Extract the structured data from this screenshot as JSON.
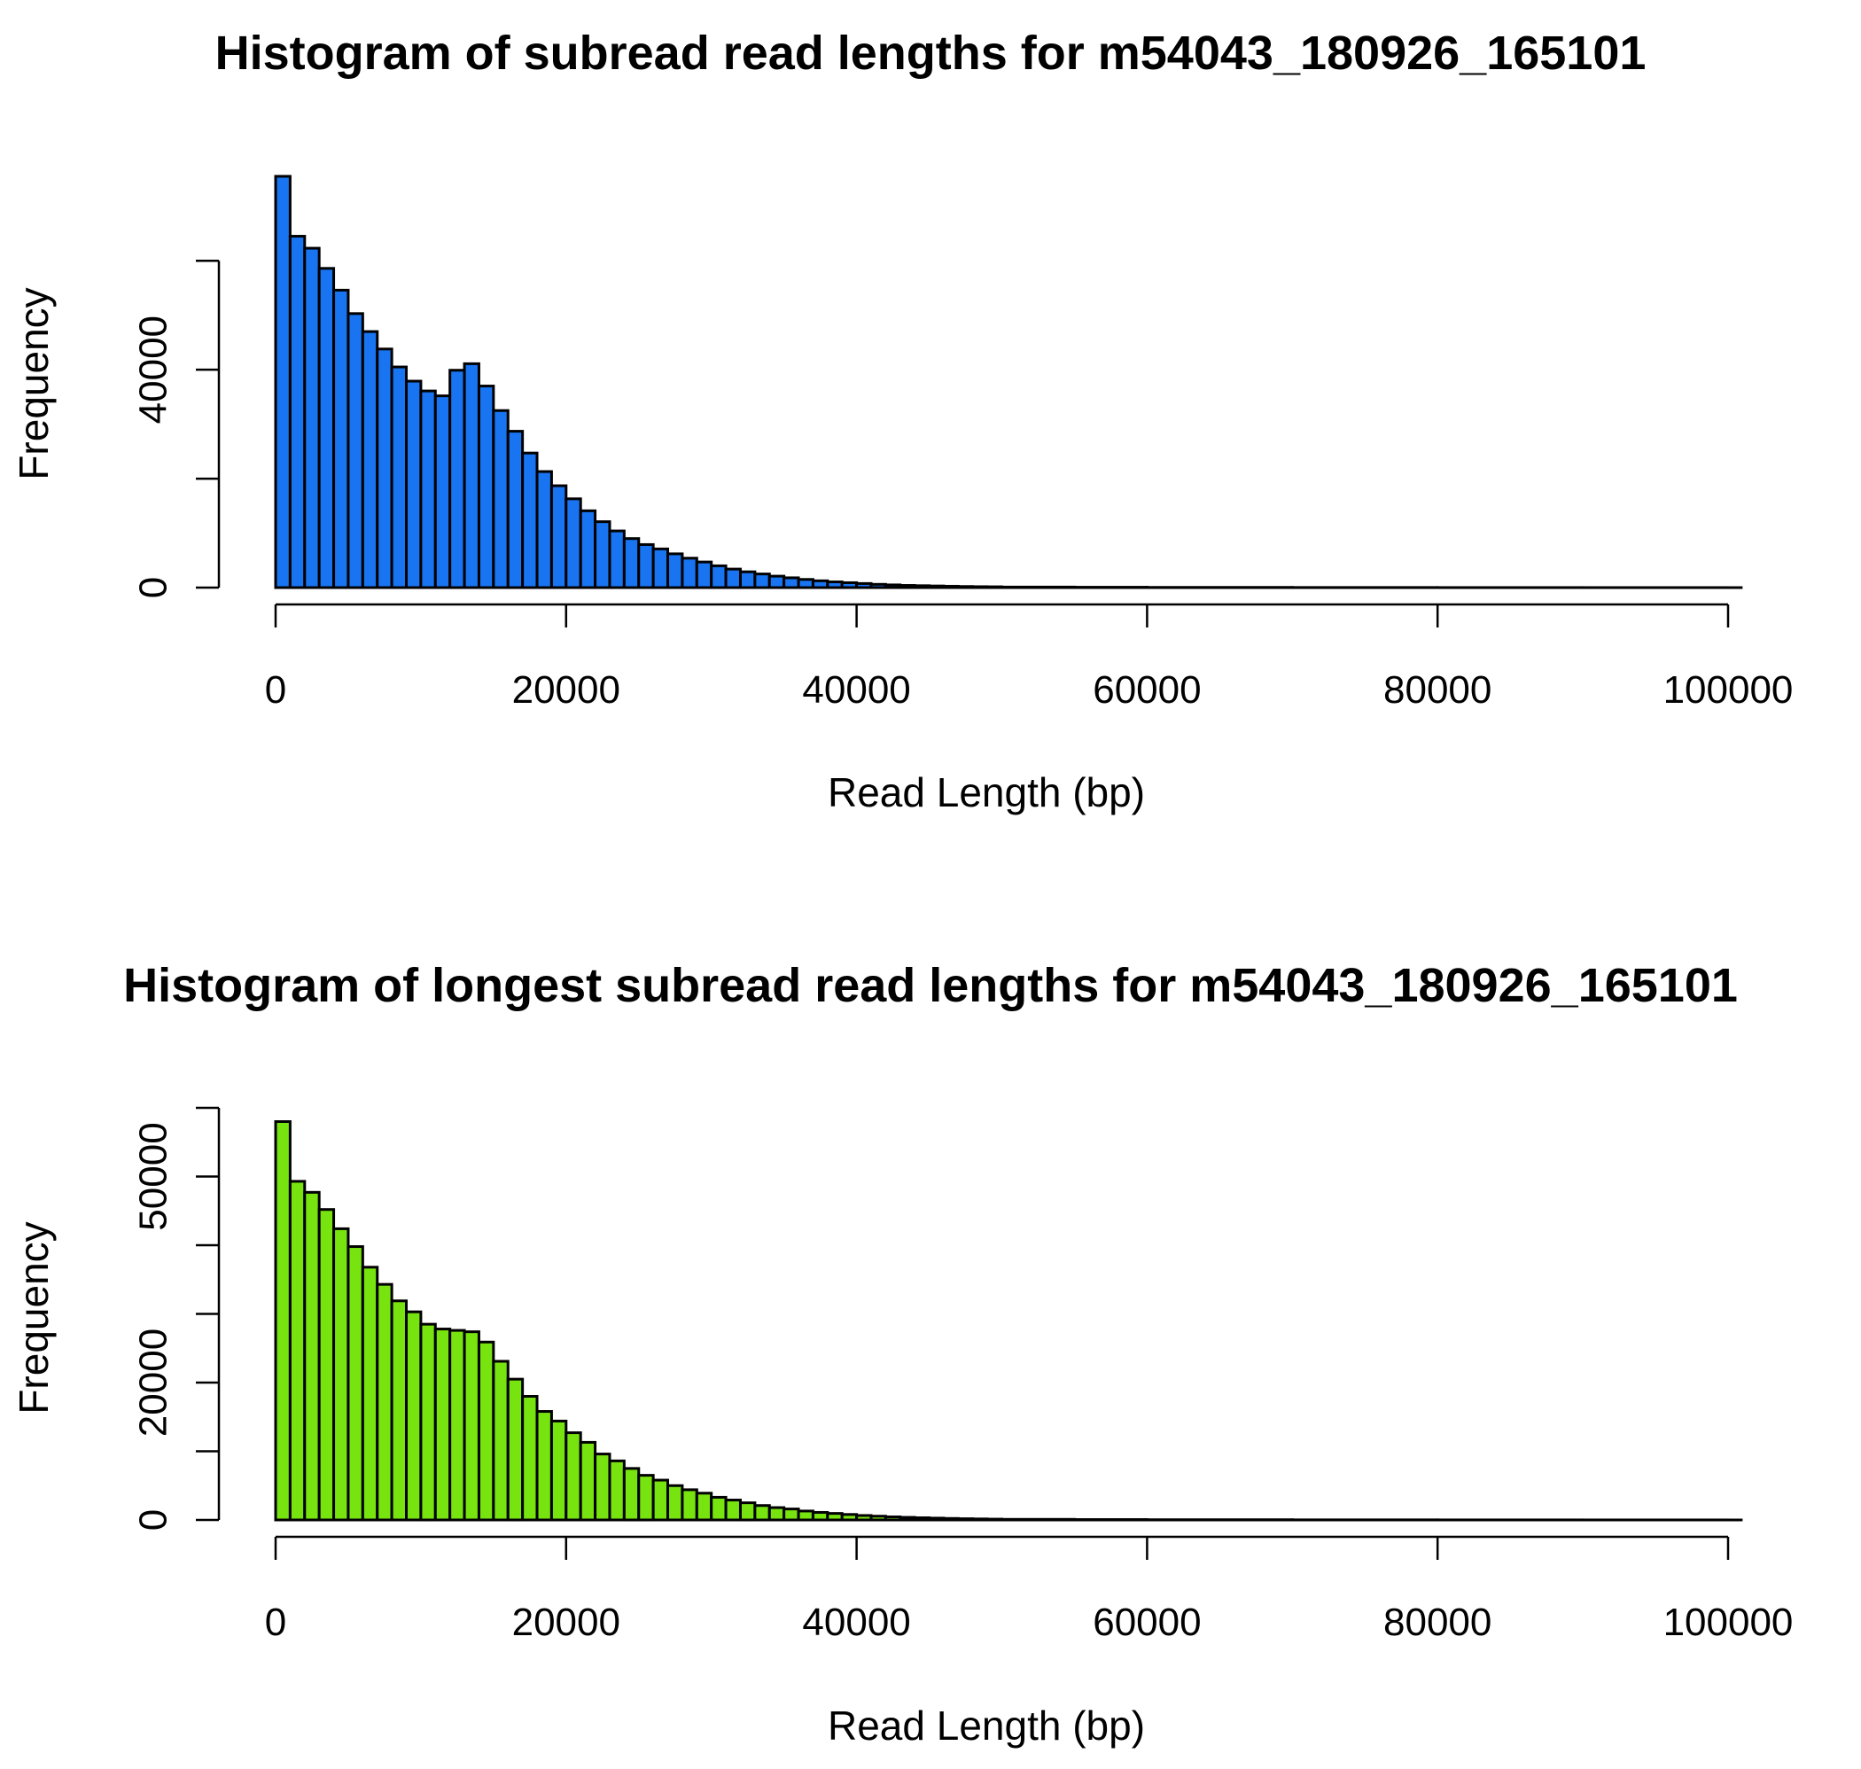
{
  "chart_data": [
    {
      "type": "bar",
      "title": "Histogram of subread read lengths for m54043_180926_165101",
      "xlabel": "Read Length (bp)",
      "ylabel": "Frequency",
      "xlim": [
        0,
        101000
      ],
      "ylim": [
        0,
        75000
      ],
      "bin_width": 1000,
      "x_ticks": [
        0,
        20000,
        40000,
        60000,
        80000,
        100000
      ],
      "x_tick_labels": [
        "0",
        "20000",
        "40000",
        "60000",
        "80000",
        "100000"
      ],
      "y_ticks": [
        0,
        20000,
        40000,
        60000
      ],
      "y_tick_labels": [
        "0",
        "",
        "40000",
        ""
      ],
      "bar_color": "#1874f0",
      "grid": false,
      "bins": [
        0,
        1000,
        2000,
        3000,
        4000,
        5000,
        6000,
        7000,
        8000,
        9000,
        10000,
        11000,
        12000,
        13000,
        14000,
        15000,
        16000,
        17000,
        18000,
        19000,
        20000,
        21000,
        22000,
        23000,
        24000,
        25000,
        26000,
        27000,
        28000,
        29000,
        30000,
        31000,
        32000,
        33000,
        34000,
        35000,
        36000,
        37000,
        38000,
        39000,
        40000,
        41000,
        42000,
        43000,
        44000,
        45000,
        46000,
        47000,
        48000,
        49000,
        50000,
        55000,
        60000,
        70000,
        80000,
        90000,
        100000
      ],
      "values": [
        75500,
        64500,
        62300,
        58600,
        54600,
        50300,
        47000,
        43800,
        40500,
        37900,
        36100,
        35200,
        39900,
        41100,
        37000,
        32500,
        28700,
        24700,
        21300,
        18700,
        16300,
        14100,
        12100,
        10400,
        9000,
        7900,
        7100,
        6200,
        5400,
        4700,
        4000,
        3400,
        2900,
        2500,
        2100,
        1800,
        1500,
        1250,
        1050,
        900,
        750,
        600,
        500,
        400,
        350,
        300,
        250,
        200,
        170,
        150,
        100,
        70,
        40,
        20,
        10,
        5,
        0
      ]
    },
    {
      "type": "bar",
      "title": "Histogram of longest subread read lengths for m54043_180926_165101",
      "xlabel": "Read Length (bp)",
      "ylabel": "Frequency",
      "xlim": [
        0,
        101000
      ],
      "ylim": [
        0,
        60000
      ],
      "bin_width": 1000,
      "x_ticks": [
        0,
        20000,
        40000,
        60000,
        80000,
        100000
      ],
      "x_tick_labels": [
        "0",
        "20000",
        "40000",
        "60000",
        "80000",
        "100000"
      ],
      "y_ticks": [
        0,
        10000,
        20000,
        30000,
        40000,
        50000,
        60000
      ],
      "y_tick_labels": [
        "0",
        "",
        "20000",
        "",
        "",
        "50000",
        ""
      ],
      "bar_color": "#77e30f",
      "grid": false,
      "bins": [
        0,
        1000,
        2000,
        3000,
        4000,
        5000,
        6000,
        7000,
        8000,
        9000,
        10000,
        11000,
        12000,
        13000,
        14000,
        15000,
        16000,
        17000,
        18000,
        19000,
        20000,
        21000,
        22000,
        23000,
        24000,
        25000,
        26000,
        27000,
        28000,
        29000,
        30000,
        31000,
        32000,
        33000,
        34000,
        35000,
        36000,
        37000,
        38000,
        39000,
        40000,
        41000,
        42000,
        43000,
        44000,
        45000,
        46000,
        47000,
        48000,
        49000,
        50000,
        55000,
        60000,
        70000,
        80000,
        90000,
        100000
      ],
      "values": [
        58000,
        49300,
        47700,
        45200,
        42400,
        39800,
        36800,
        34300,
        31900,
        30300,
        28500,
        27800,
        27600,
        27400,
        25900,
        23100,
        20500,
        18000,
        15800,
        14400,
        12700,
        11300,
        9600,
        8600,
        7500,
        6500,
        5800,
        5000,
        4400,
        3900,
        3300,
        2900,
        2500,
        2100,
        1800,
        1600,
        1300,
        1100,
        950,
        800,
        650,
        550,
        450,
        380,
        320,
        270,
        220,
        180,
        150,
        120,
        90,
        60,
        35,
        18,
        8,
        4,
        0
      ]
    }
  ]
}
